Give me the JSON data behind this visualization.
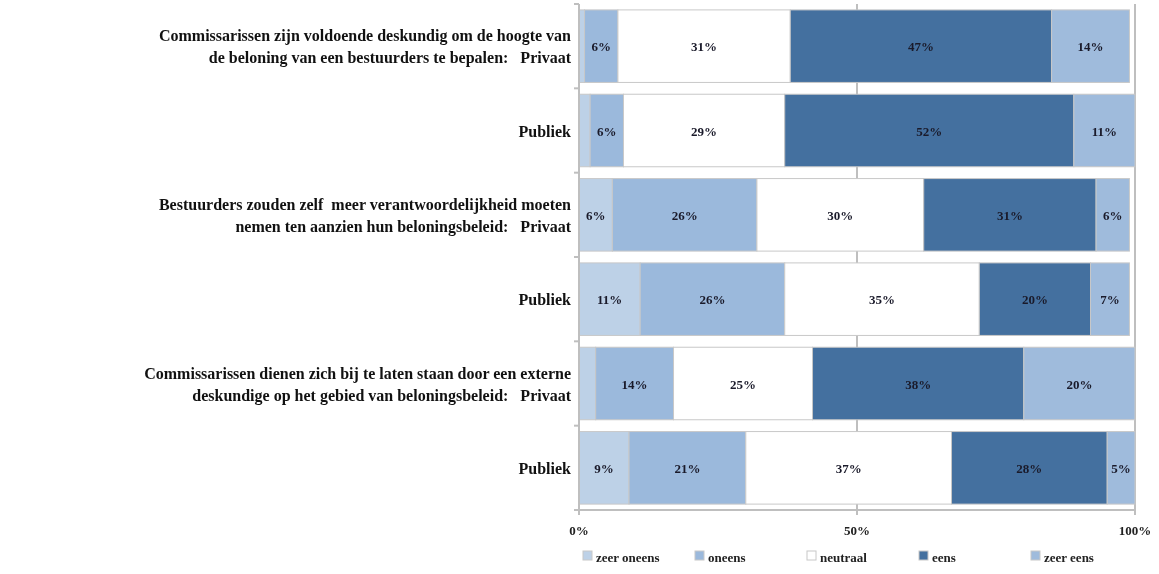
{
  "chart_data": {
    "type": "bar",
    "orientation": "horizontal",
    "stacked": true,
    "categories": [
      "Commissarissen zijn voldoende deskundig om de hoogte van\nde beloning van een bestuurders te bepalen:   Privaat",
      "Publiek",
      "Bestuurders zouden zelf  meer verantwoordelijkheid moeten\nnemen ten aanzien hun beloningsbeleid:   Privaat",
      "Publiek",
      "Commissarissen dienen zich bij te laten staan door een externe\ndeskundige op het gebied van beloningsbeleid:   Privaat",
      "Publiek"
    ],
    "series": [
      {
        "name": "zeer oneens",
        "color": "#bdd1e7",
        "values": [
          1,
          2,
          6,
          11,
          3,
          9
        ],
        "value_labels": [
          null,
          null,
          "6%",
          "11%",
          null,
          "9%"
        ]
      },
      {
        "name": "oneens",
        "color": "#9bb9dc",
        "values": [
          6,
          6,
          26,
          26,
          14,
          21
        ],
        "value_labels": [
          "6%",
          "6%",
          "26%",
          "26%",
          "14%",
          "21%"
        ]
      },
      {
        "name": "neutraal",
        "color": "#ffffff",
        "values": [
          31,
          29,
          30,
          35,
          25,
          37
        ],
        "value_labels": [
          "31%",
          "29%",
          "30%",
          "35%",
          "25%",
          "37%"
        ]
      },
      {
        "name": "eens",
        "color": "#44709f",
        "values": [
          47,
          52,
          31,
          20,
          38,
          28
        ],
        "value_labels": [
          "47%",
          "52%",
          "31%",
          "20%",
          "38%",
          "28%"
        ]
      },
      {
        "name": "zeer eens",
        "color": "#9fbbdc",
        "values": [
          14,
          11,
          6,
          7,
          20,
          5
        ],
        "value_labels": [
          "14%",
          "11%",
          "6%",
          "7%",
          "20%",
          "5%"
        ]
      }
    ],
    "xlim": [
      0,
      100
    ],
    "xticks": [
      {
        "value": 0,
        "label": "0%"
      },
      {
        "value": 50,
        "label": "50%"
      },
      {
        "value": 100,
        "label": "100%"
      }
    ],
    "grid": "x",
    "legend": "bottom"
  }
}
